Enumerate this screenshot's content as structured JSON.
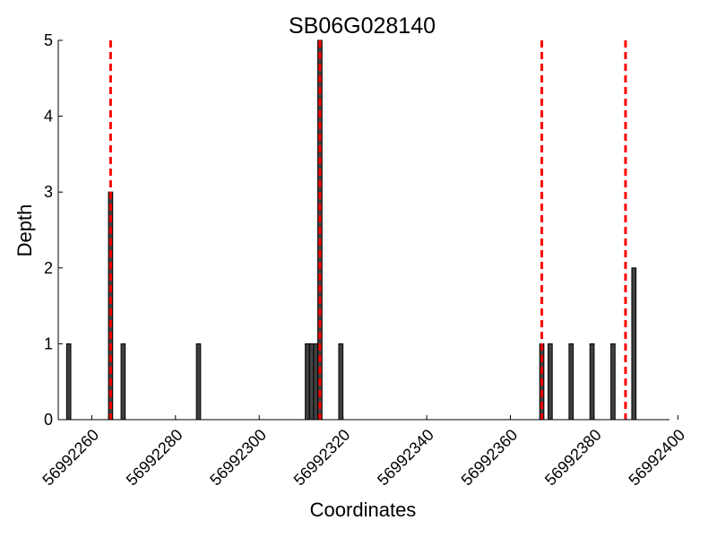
{
  "chart_data": {
    "type": "bar",
    "title": "SB06G028140",
    "xlabel": "Coordinates",
    "ylabel": "Depth",
    "xlim": [
      56992252,
      56992398
    ],
    "ylim": [
      0,
      5
    ],
    "x_ticks": [
      56992260,
      56992280,
      56992300,
      56992320,
      56992340,
      56992360,
      56992380,
      56992400
    ],
    "y_ticks": [
      0,
      1,
      2,
      3,
      4,
      5
    ],
    "bar_width": 1,
    "bars": [
      {
        "x": 56992254,
        "value": 1
      },
      {
        "x": 56992264,
        "value": 3
      },
      {
        "x": 56992267,
        "value": 1
      },
      {
        "x": 56992285,
        "value": 1
      },
      {
        "x": 56992311,
        "value": 1
      },
      {
        "x": 56992312,
        "value": 1
      },
      {
        "x": 56992313,
        "value": 1
      },
      {
        "x": 56992314,
        "value": 5
      },
      {
        "x": 56992319,
        "value": 1
      },
      {
        "x": 56992367,
        "value": 1
      },
      {
        "x": 56992369,
        "value": 1
      },
      {
        "x": 56992374,
        "value": 1
      },
      {
        "x": 56992379,
        "value": 1
      },
      {
        "x": 56992384,
        "value": 1
      },
      {
        "x": 56992389,
        "value": 2
      }
    ],
    "reference_lines": [
      56992264,
      56992314,
      56992367,
      56992387
    ],
    "bar_color": "#404040",
    "bar_edge_color": "#000000",
    "reference_line_color": "#ff0000",
    "grid": false,
    "legend": "none"
  }
}
